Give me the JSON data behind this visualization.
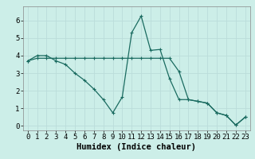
{
  "xlabel": "Humidex (Indice chaleur)",
  "bg_color": "#cceee8",
  "grid_color": "#bbddda",
  "line_color": "#1a6b60",
  "x_ticks": [
    0,
    1,
    2,
    3,
    4,
    5,
    6,
    7,
    8,
    9,
    10,
    11,
    12,
    13,
    14,
    15,
    16,
    17,
    18,
    19,
    20,
    21,
    22,
    23
  ],
  "y_ticks": [
    0,
    1,
    2,
    3,
    4,
    5,
    6
  ],
  "ylim": [
    -0.25,
    6.8
  ],
  "xlim": [
    -0.5,
    23.5
  ],
  "line1_x": [
    0,
    1,
    2,
    3,
    4,
    5,
    6,
    7,
    8,
    9,
    10,
    11,
    12,
    13,
    14,
    15,
    16,
    17,
    18,
    19,
    20,
    21,
    22,
    23
  ],
  "line1_y": [
    3.7,
    4.0,
    4.0,
    3.7,
    3.5,
    3.0,
    2.6,
    2.1,
    1.5,
    0.75,
    1.65,
    5.3,
    6.25,
    4.3,
    4.35,
    2.7,
    1.5,
    1.5,
    1.4,
    1.3,
    0.75,
    0.6,
    0.05,
    0.5
  ],
  "line2_x": [
    0,
    1,
    2,
    3,
    4,
    5,
    6,
    7,
    8,
    9,
    10,
    11,
    12,
    13,
    14,
    15,
    16,
    17,
    18,
    19,
    20,
    21,
    22,
    23
  ],
  "line2_y": [
    3.7,
    3.85,
    3.85,
    3.85,
    3.85,
    3.85,
    3.85,
    3.85,
    3.85,
    3.85,
    3.85,
    3.85,
    3.85,
    3.85,
    3.85,
    3.85,
    3.1,
    1.5,
    1.4,
    1.3,
    0.75,
    0.6,
    0.05,
    0.5
  ],
  "tick_fontsize": 6.5,
  "label_fontsize": 7.5
}
